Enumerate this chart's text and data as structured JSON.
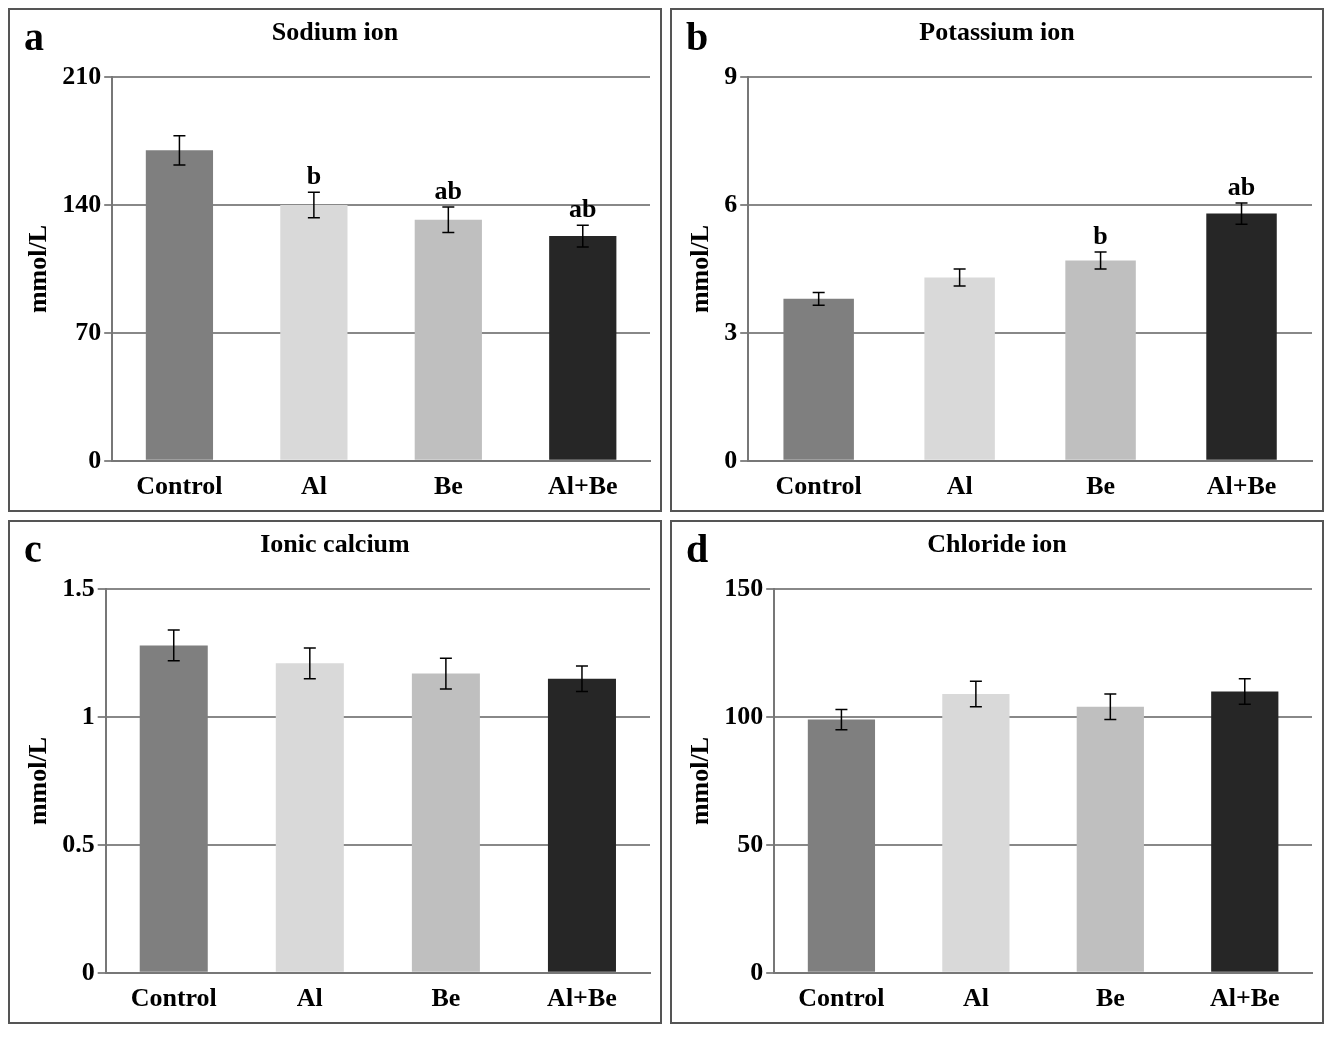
{
  "chart_data": [
    {
      "type": "bar",
      "title": "Sodium ion",
      "ylabel": "mmol/L",
      "categories": [
        "Control",
        "Al",
        "Be",
        "Al+Be"
      ],
      "values": [
        170,
        140,
        132,
        123
      ],
      "errors": [
        8,
        7,
        7,
        6
      ],
      "colors": [
        "#7f7f7f",
        "#d9d9d9",
        "#bfbfbf",
        "#262626"
      ],
      "ylim": [
        0,
        210
      ],
      "yticks": [
        0,
        70,
        140,
        210
      ],
      "grid": "y",
      "legend": false,
      "annotations": [
        "a",
        {
          "text": "b",
          "x": "Al",
          "y": 147
        },
        {
          "text": "ab",
          "x": "Be",
          "y": 139
        },
        {
          "text": "ab",
          "x": "Al+Be",
          "y": 129
        }
      ]
    },
    {
      "type": "bar",
      "title": "Potassium ion",
      "ylabel": "mmol/L",
      "categories": [
        "Control",
        "Al",
        "Be",
        "Al+Be"
      ],
      "values": [
        3.8,
        4.3,
        4.7,
        5.8
      ],
      "errors": [
        0.15,
        0.2,
        0.2,
        0.25
      ],
      "colors": [
        "#7f7f7f",
        "#d9d9d9",
        "#bfbfbf",
        "#262626"
      ],
      "ylim": [
        0,
        9
      ],
      "yticks": [
        0,
        3,
        6,
        9
      ],
      "grid": "y",
      "legend": false,
      "annotations": [
        "b",
        {
          "text": "b",
          "x": "Be",
          "y": 4.9
        },
        {
          "text": "ab",
          "x": "Al+Be",
          "y": 6.05
        }
      ]
    },
    {
      "type": "bar",
      "title": "Ionic calcium",
      "ylabel": "mmol/L",
      "categories": [
        "Control",
        "Al",
        "Be",
        "Al+Be"
      ],
      "values": [
        1.28,
        1.21,
        1.17,
        1.15
      ],
      "errors": [
        0.06,
        0.06,
        0.06,
        0.05
      ],
      "colors": [
        "#7f7f7f",
        "#d9d9d9",
        "#bfbfbf",
        "#262626"
      ],
      "ylim": [
        0,
        1.5
      ],
      "yticks": [
        0,
        0.5,
        1,
        1.5
      ],
      "grid": "y",
      "legend": false,
      "annotations": [
        "c"
      ]
    },
    {
      "type": "bar",
      "title": "Chloride ion",
      "ylabel": "mmol/L",
      "categories": [
        "Control",
        "Al",
        "Be",
        "Al+Be"
      ],
      "values": [
        99,
        109,
        104,
        110
      ],
      "errors": [
        4,
        5,
        5,
        5
      ],
      "colors": [
        "#7f7f7f",
        "#d9d9d9",
        "#bfbfbf",
        "#262626"
      ],
      "ylim": [
        0,
        150
      ],
      "yticks": [
        0,
        50,
        100,
        150
      ],
      "grid": "y",
      "legend": false,
      "annotations": [
        "d"
      ]
    }
  ]
}
